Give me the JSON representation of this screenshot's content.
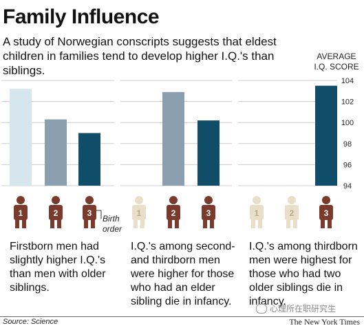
{
  "title": "Family Influence",
  "subtitle": "A study of Norwegian conscripts suggests that eldest children in families tend to develop higher I.Q.'s than siblings.",
  "axis_title_line1": "AVERAGE",
  "axis_title_line2": "I.Q. SCORE",
  "colors": {
    "bar_first": "#d5e6ef",
    "bar_second": "#8c9fb1",
    "bar_third": "#0f4d69",
    "person_active": "#7a3a2c",
    "person_faded": "#e9dfc8",
    "gridline": "#cccccc"
  },
  "chart_data": {
    "type": "bar",
    "ylim": [
      94,
      104
    ],
    "yticks": [
      94,
      96,
      98,
      100,
      102,
      104
    ],
    "ylabel": "AVERAGE I.Q. SCORE",
    "panels": [
      {
        "bars": [
          {
            "birth_order": "1",
            "value": 103.2
          },
          {
            "birth_order": "2",
            "value": 100.3
          },
          {
            "birth_order": "3",
            "value": 99.0
          }
        ],
        "highlighted": [
          "1",
          "2",
          "3"
        ],
        "description": "Firstborn men had slightly higher I.Q.'s than men with older siblings."
      },
      {
        "bars": [
          {
            "birth_order": "2",
            "value": 102.9
          },
          {
            "birth_order": "3",
            "value": 100.2
          }
        ],
        "highlighted": [
          "2",
          "3"
        ],
        "description": "I.Q.'s among second- and thirdborn men were higher for those who had an elder sibling die in infancy."
      },
      {
        "bars": [
          {
            "birth_order": "3",
            "value": 103.5
          }
        ],
        "highlighted": [
          "3"
        ],
        "description": "I.Q.'s among thirdborn men were highest for those who had two older siblings die in infancy."
      }
    ]
  },
  "icons": {
    "person": "person-icon"
  },
  "birth_order_label": "Birth order",
  "descriptions": {
    "panel1": [
      "Firstborn men had",
      "slightly higher I.Q.'s",
      "than men with older",
      "siblings."
    ],
    "panel2": [
      "I.Q.'s among second-",
      "and thirdborn men",
      "were higher for those",
      "who had an elder",
      "sibling die in infancy."
    ],
    "panel3": [
      "I.Q.'s among thirdborn",
      "men were highest for",
      "those who had two",
      "older siblings die in",
      "infancy."
    ]
  },
  "source_label": "Source: Science",
  "credit": "The New York Times",
  "watermark": "心理所在职研究生"
}
